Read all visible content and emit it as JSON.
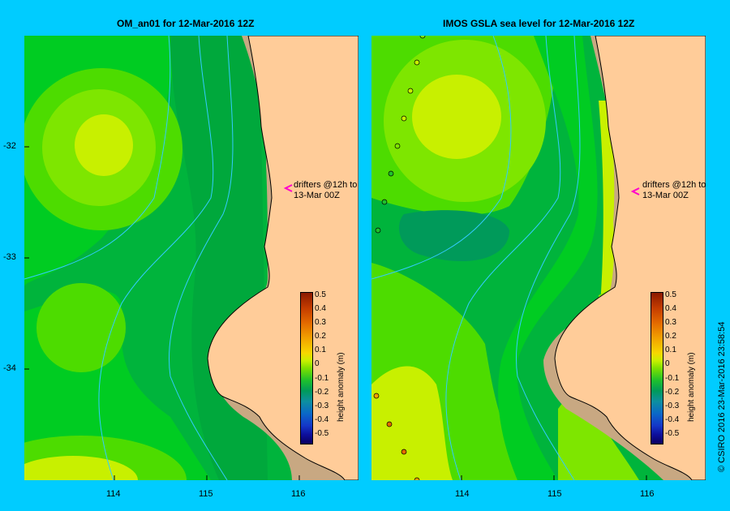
{
  "titles": {
    "left": "OM_an01  for 12-Mar-2016 12Z",
    "right": "IMOS  GSLA sea level  for 12-Mar-2016 12Z"
  },
  "y_ticks": [
    "-32",
    "-33",
    "-34"
  ],
  "x_ticks": [
    "114",
    "115",
    "116"
  ],
  "annotation": {
    "line1": "drifters @12h to",
    "line2": "13-Mar 00Z"
  },
  "colorbar": {
    "label": "height anomaly (m)",
    "ticks": [
      "0.5",
      "0.4",
      "0.3",
      "0.2",
      "0.1",
      "0",
      "-0.1",
      "-0.2",
      "-0.3",
      "-0.4",
      "-0.5"
    ],
    "colors": [
      "#8b1a00",
      "#c43c00",
      "#e36a00",
      "#f2a100",
      "#f7d800",
      "#c8f000",
      "#7ee000",
      "#1fc02c",
      "#009a5a",
      "#0d8fa0",
      "#0a68c8",
      "#1437c8",
      "#0e0f9c",
      "#0a0060"
    ]
  },
  "colors": {
    "background": "#00ccff",
    "land": "#ffcc99",
    "shelf": "#c8a882",
    "isobath": "#33ccff"
  },
  "copyright": "© CSIRO 2016   23-Mar-2016 23:58:54"
}
